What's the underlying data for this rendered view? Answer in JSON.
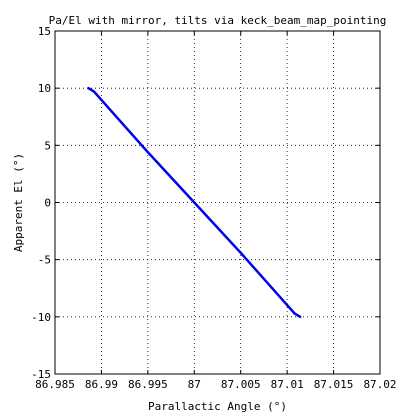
{
  "chart_data": {
    "type": "line",
    "title": "Pa/El with mirror, tilts via keck_beam_map_pointing",
    "xlabel": "Parallactic Angle (°)",
    "ylabel": "Apparent El (°)",
    "xlim": [
      86.985,
      87.02
    ],
    "ylim": [
      -15,
      15
    ],
    "xticks": [
      86.985,
      86.99,
      86.995,
      87,
      87.005,
      87.01,
      87.015,
      87.02
    ],
    "xtick_labels": [
      "86.985",
      "86.99",
      "86.995",
      "87",
      "87.005",
      "87.01",
      "87.015",
      "87.02"
    ],
    "yticks": [
      -15,
      -10,
      -5,
      0,
      5,
      10,
      15
    ],
    "ytick_labels": [
      "-15",
      "-10",
      "-5",
      "0",
      "5",
      "10",
      "15"
    ],
    "grid": true,
    "series": [
      {
        "color": "#0000ee",
        "x": [
          86.9886,
          86.9892,
          86.995,
          87.0,
          87.005,
          87.0108,
          87.0114
        ],
        "y": [
          10,
          9.7,
          4.4,
          0,
          -4.4,
          -9.7,
          -10
        ]
      }
    ]
  }
}
